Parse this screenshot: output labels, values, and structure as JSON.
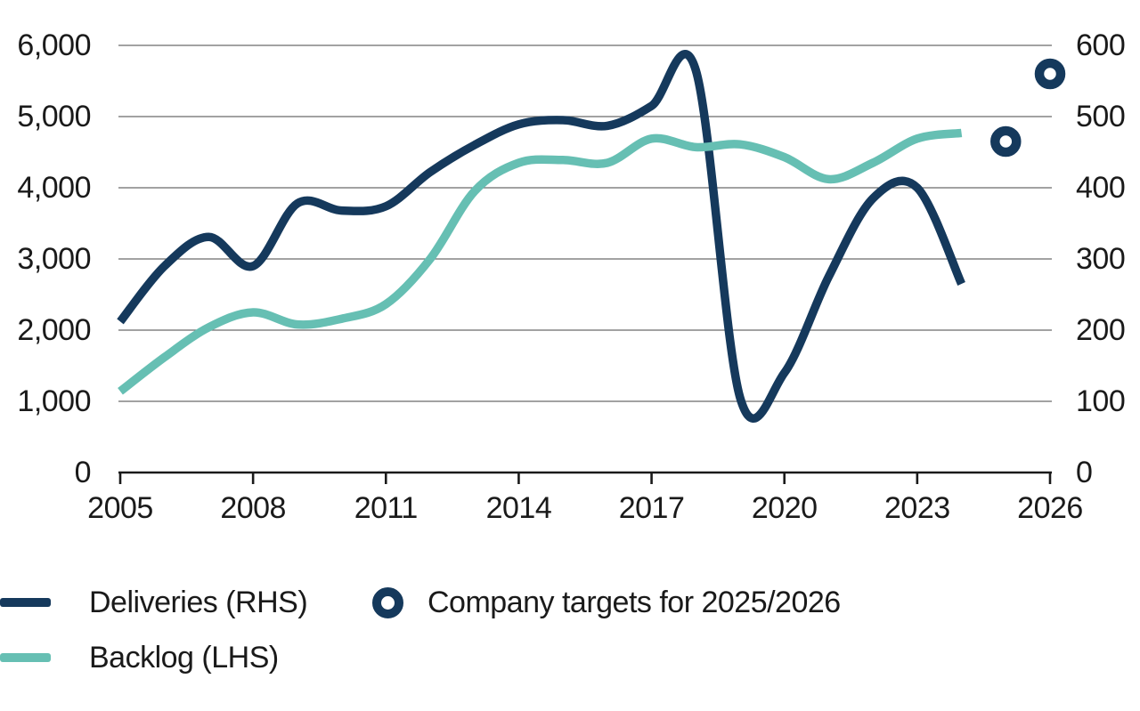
{
  "chart_data": {
    "type": "line",
    "title": "",
    "x": [
      2005,
      2006,
      2007,
      2008,
      2009,
      2010,
      2011,
      2012,
      2013,
      2014,
      2015,
      2016,
      2017,
      2018,
      2019,
      2020,
      2021,
      2022,
      2023,
      2024
    ],
    "series": [
      {
        "name": "Deliveries (RHS)",
        "axis": "right",
        "color": "#15395c",
        "values": [
          212,
          290,
          331,
          290,
          378,
          368,
          374,
          422,
          460,
          489,
          495,
          487,
          515,
          565,
          105,
          140,
          275,
          385,
          400,
          265
        ]
      },
      {
        "name": "Backlog (LHS)",
        "axis": "left",
        "color": "#66bfb3",
        "values": [
          1140,
          1620,
          2040,
          2250,
          2080,
          2160,
          2365,
          3000,
          3950,
          4350,
          4390,
          4350,
          4690,
          4570,
          4610,
          4430,
          4120,
          4350,
          4690,
          4770
        ]
      }
    ],
    "targets": {
      "name": "Company targets for 2025/2026",
      "axis": "right",
      "color": "#15395c",
      "marker": "ring",
      "points": [
        {
          "year": 2025,
          "value": 465
        },
        {
          "year": 2026,
          "value": 560
        }
      ]
    },
    "axes": {
      "left": {
        "min": 0,
        "max": 6000,
        "step": 1000,
        "tick_labels": [
          "0",
          "1,000",
          "2,000",
          "3,000",
          "4,000",
          "5,000",
          "6,000"
        ]
      },
      "right": {
        "min": 0,
        "max": 600,
        "step": 100,
        "tick_labels": [
          "0",
          "100",
          "200",
          "300",
          "400",
          "500",
          "600"
        ]
      },
      "x": {
        "range": [
          2005,
          2026
        ],
        "tick_years": [
          2005,
          2008,
          2011,
          2014,
          2017,
          2020,
          2023,
          2026
        ],
        "tick_labels": [
          "2005",
          "2008",
          "2011",
          "2014",
          "2017",
          "2020",
          "2023",
          "2026"
        ]
      }
    },
    "grid": true,
    "legend_position": "bottom-left"
  },
  "colors": {
    "navy": "#15395c",
    "teal": "#66bfb3",
    "grid": "#6b6b6b",
    "axis": "#1a1a1a",
    "text": "#1a1a1a",
    "background": "#ffffff"
  }
}
